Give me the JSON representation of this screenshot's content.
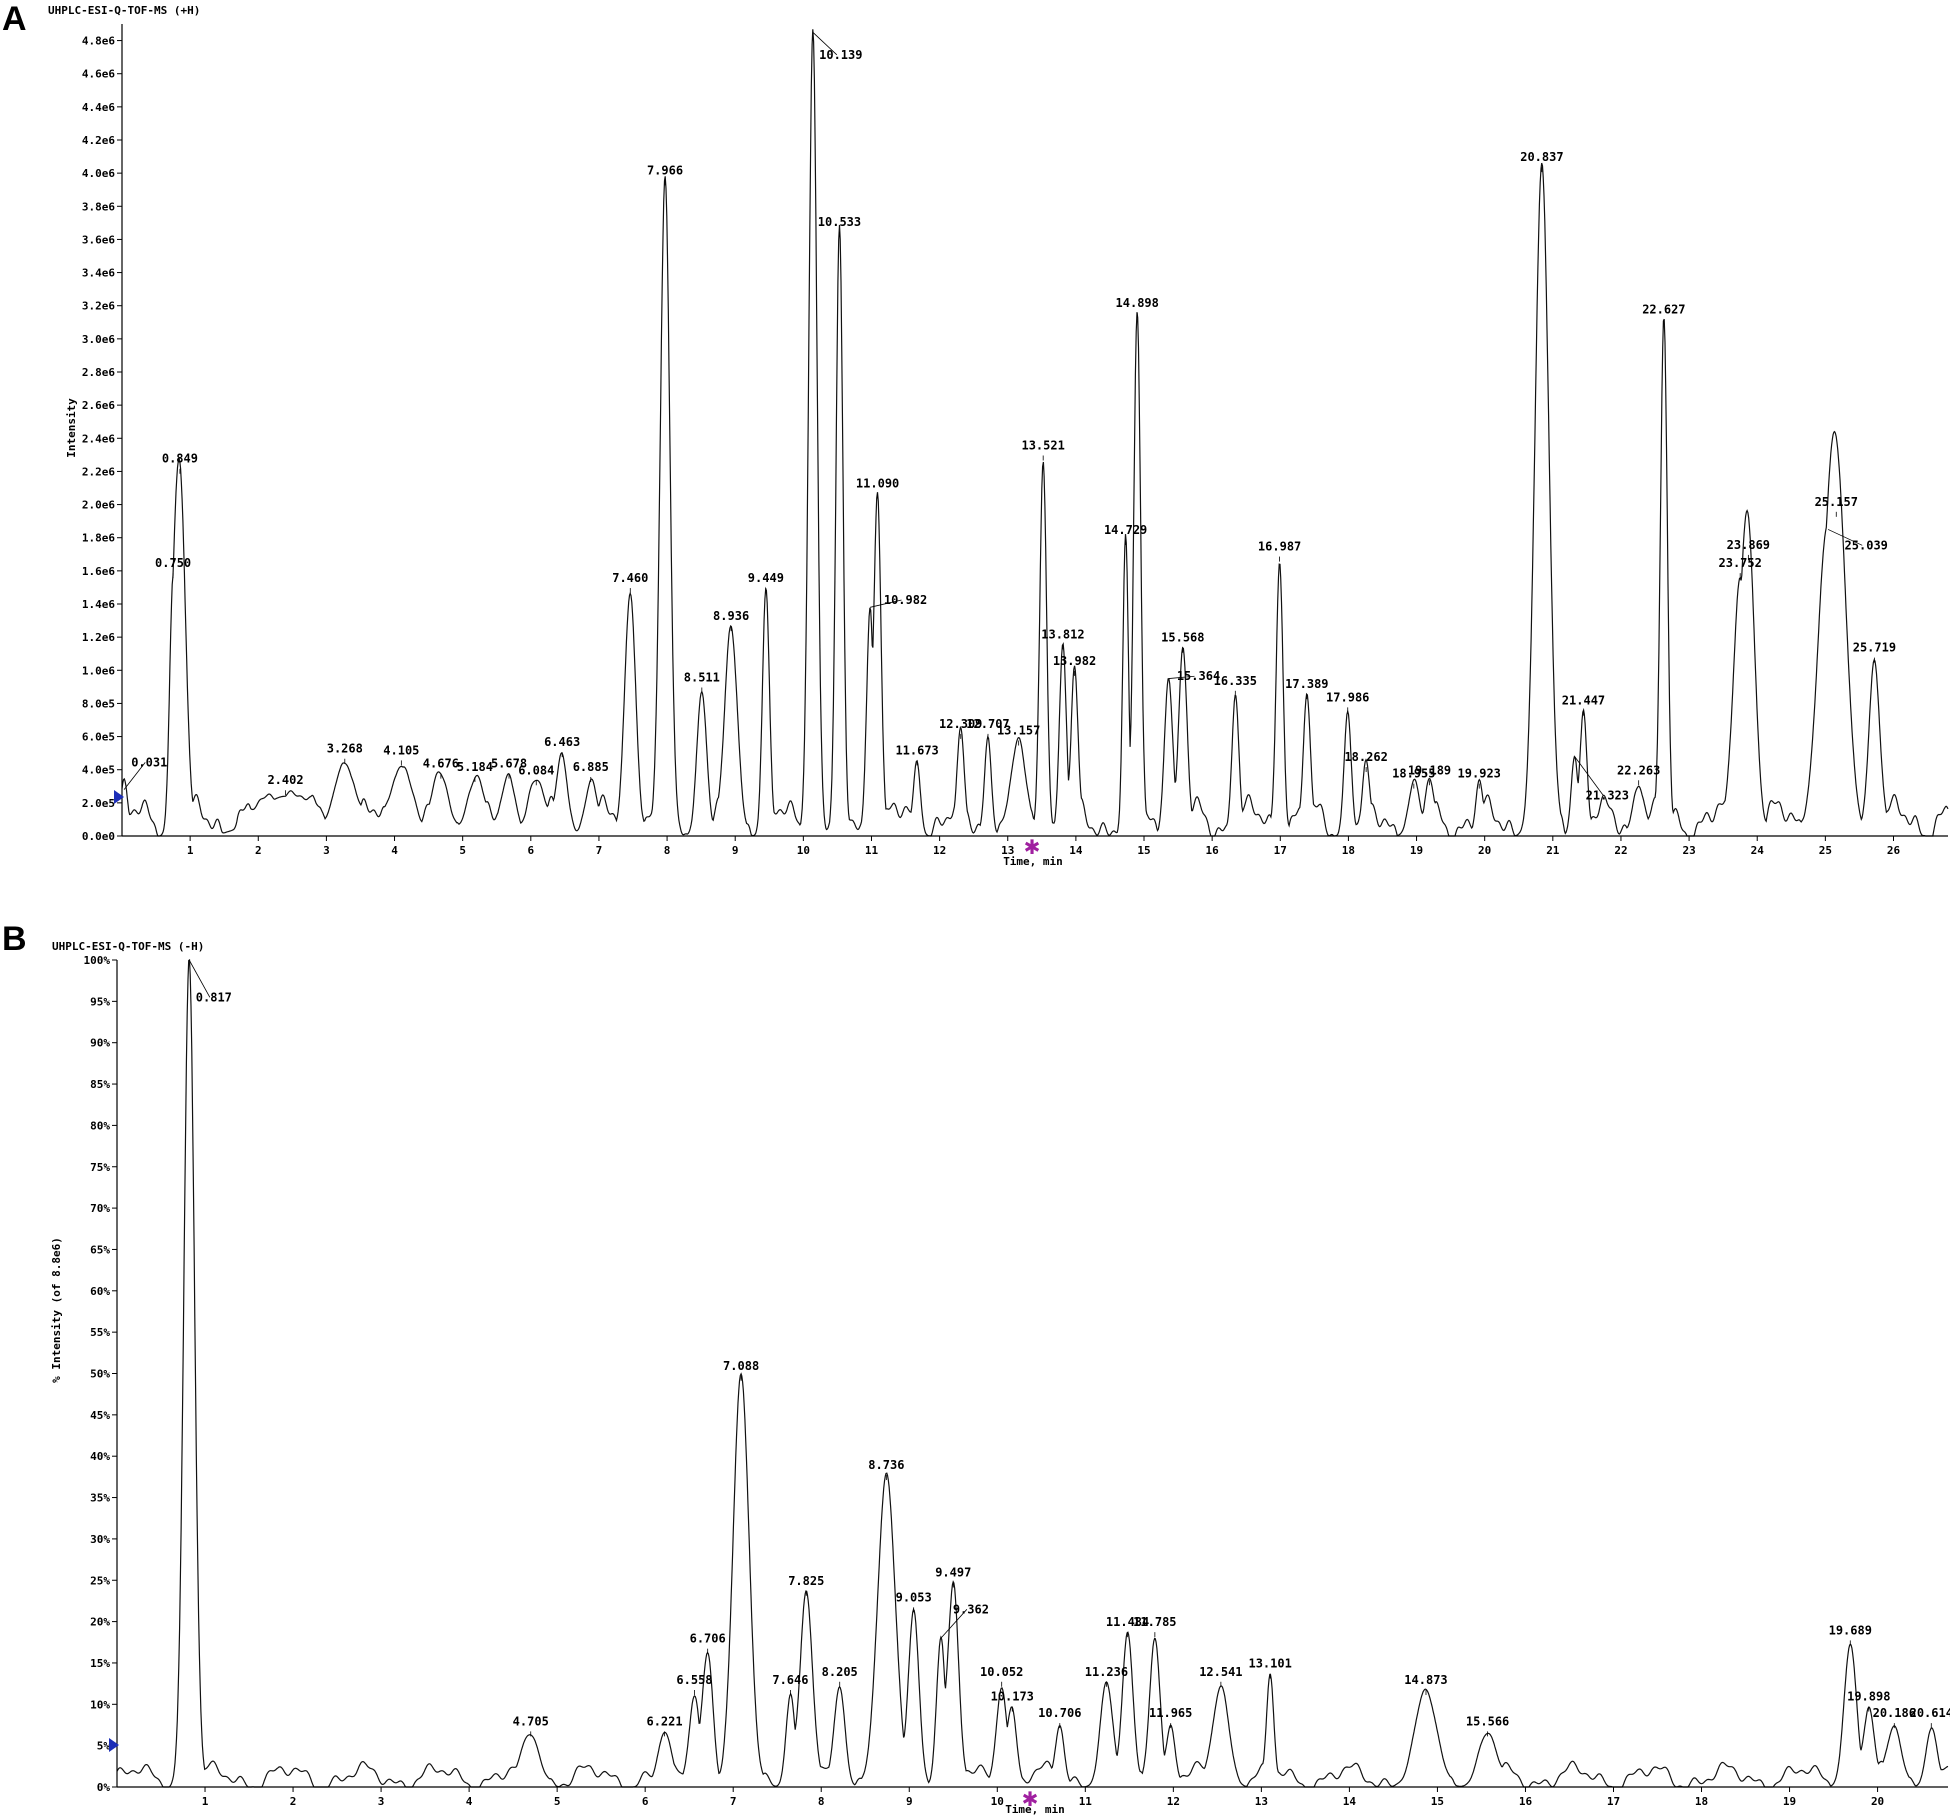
{
  "chart_data": [
    {
      "panel": "A",
      "type": "line",
      "title": "UHPLC-ESI-Q-TOF-MS (+H)",
      "xlabel": "Time, min",
      "ylabel": "Intensity",
      "xlim": [
        0,
        26.8
      ],
      "ylim": [
        0,
        4900000.0
      ],
      "xticks": [
        1,
        2,
        3,
        4,
        5,
        6,
        7,
        8,
        9,
        10,
        11,
        12,
        13,
        14,
        15,
        16,
        17,
        18,
        19,
        20,
        21,
        22,
        23,
        24,
        25,
        26
      ],
      "yticks": [
        {
          "v": 0,
          "label": "0.0e0"
        },
        {
          "v": 200000,
          "label": "2.0e5"
        },
        {
          "v": 400000,
          "label": "4.0e5"
        },
        {
          "v": 600000,
          "label": "6.0e5"
        },
        {
          "v": 800000,
          "label": "8.0e5"
        },
        {
          "v": 1000000,
          "label": "1.0e6"
        },
        {
          "v": 1200000,
          "label": "1.2e6"
        },
        {
          "v": 1400000,
          "label": "1.4e6"
        },
        {
          "v": 1600000,
          "label": "1.6e6"
        },
        {
          "v": 1800000,
          "label": "1.8e6"
        },
        {
          "v": 2000000,
          "label": "2.0e6"
        },
        {
          "v": 2200000,
          "label": "2.2e6"
        },
        {
          "v": 2400000,
          "label": "2.4e6"
        },
        {
          "v": 2600000,
          "label": "2.6e6"
        },
        {
          "v": 2800000,
          "label": "2.8e6"
        },
        {
          "v": 3000000,
          "label": "3.0e6"
        },
        {
          "v": 3200000,
          "label": "3.2e6"
        },
        {
          "v": 3400000,
          "label": "3.4e6"
        },
        {
          "v": 3600000,
          "label": "3.6e6"
        },
        {
          "v": 3800000,
          "label": "3.8e6"
        },
        {
          "v": 4000000,
          "label": "4.0e6"
        },
        {
          "v": 4200000,
          "label": "4.2e6"
        },
        {
          "v": 4400000,
          "label": "4.4e6"
        },
        {
          "v": 4600000,
          "label": "4.6e6"
        },
        {
          "v": 4800000,
          "label": "4.8e6"
        }
      ],
      "baseline": 160000,
      "peaks": [
        {
          "label": "0.031",
          "x": 0.03,
          "y": 280000,
          "w": 0.05,
          "lx": 0.4,
          "ly": 420000
        },
        {
          "label": "0.750",
          "x": 0.75,
          "y": 1550000,
          "w": 0.05
        },
        {
          "label": "0.849",
          "x": 0.85,
          "y": 2180000,
          "w": 0.08
        },
        {
          "label": "2.402",
          "x": 2.4,
          "y": 240000,
          "w": 0.4
        },
        {
          "label": "3.268",
          "x": 3.27,
          "y": 430000,
          "w": 0.15
        },
        {
          "label": "4.105",
          "x": 4.1,
          "y": 420000,
          "w": 0.15
        },
        {
          "label": "4.676",
          "x": 4.68,
          "y": 340000,
          "w": 0.12
        },
        {
          "label": "5.184",
          "x": 5.18,
          "y": 320000,
          "w": 0.12
        },
        {
          "label": "5.678",
          "x": 5.68,
          "y": 340000,
          "w": 0.1
        },
        {
          "label": "6.084",
          "x": 6.08,
          "y": 300000,
          "w": 0.12
        },
        {
          "label": "6.463",
          "x": 6.46,
          "y": 470000,
          "w": 0.08
        },
        {
          "label": "6.885",
          "x": 6.88,
          "y": 320000,
          "w": 0.08
        },
        {
          "label": "7.460",
          "x": 7.46,
          "y": 1460000,
          "w": 0.08
        },
        {
          "label": "7.966",
          "x": 7.97,
          "y": 3920000,
          "w": 0.07
        },
        {
          "label": "8.511",
          "x": 8.51,
          "y": 860000,
          "w": 0.07
        },
        {
          "label": "8.936",
          "x": 8.94,
          "y": 1230000,
          "w": 0.09
        },
        {
          "label": "9.449",
          "x": 9.45,
          "y": 1460000,
          "w": 0.05
        },
        {
          "label": "10.139",
          "x": 10.14,
          "y": 4850000,
          "w": 0.06,
          "lx": 10.55,
          "ly": 4690000
        },
        {
          "label": "10.533",
          "x": 10.53,
          "y": 3610000,
          "w": 0.05
        },
        {
          "label": "10.982",
          "x": 10.98,
          "y": 1380000,
          "w": 0.05,
          "lx": 11.5,
          "ly": 1400000
        },
        {
          "label": "11.090",
          "x": 11.09,
          "y": 2030000,
          "w": 0.05
        },
        {
          "label": "11.673",
          "x": 11.67,
          "y": 420000,
          "w": 0.05
        },
        {
          "label": "12.309",
          "x": 12.31,
          "y": 580000,
          "w": 0.05
        },
        {
          "label": "12.707",
          "x": 12.71,
          "y": 580000,
          "w": 0.05
        },
        {
          "label": "13.157",
          "x": 13.16,
          "y": 540000,
          "w": 0.1
        },
        {
          "label": "13.521",
          "x": 13.52,
          "y": 2260000,
          "w": 0.05
        },
        {
          "label": "13.812",
          "x": 13.81,
          "y": 1120000,
          "w": 0.05
        },
        {
          "label": "13.982",
          "x": 13.98,
          "y": 960000,
          "w": 0.05
        },
        {
          "label": "14.729",
          "x": 14.73,
          "y": 1750000,
          "w": 0.04
        },
        {
          "label": "14.898",
          "x": 14.9,
          "y": 3120000,
          "w": 0.05
        },
        {
          "label": "15.364",
          "x": 15.36,
          "y": 950000,
          "w": 0.06,
          "lx": 15.8,
          "ly": 940000
        },
        {
          "label": "15.568",
          "x": 15.57,
          "y": 1100000,
          "w": 0.06
        },
        {
          "label": "16.335",
          "x": 16.34,
          "y": 840000,
          "w": 0.05
        },
        {
          "label": "16.987",
          "x": 16.99,
          "y": 1650000,
          "w": 0.05
        },
        {
          "label": "17.389",
          "x": 17.39,
          "y": 820000,
          "w": 0.05
        },
        {
          "label": "17.986",
          "x": 17.99,
          "y": 740000,
          "w": 0.05
        },
        {
          "label": "18.262",
          "x": 18.26,
          "y": 380000,
          "w": 0.05
        },
        {
          "label": "18.955",
          "x": 18.96,
          "y": 280000,
          "w": 0.08
        },
        {
          "label": "19.189",
          "x": 19.19,
          "y": 300000,
          "w": 0.06
        },
        {
          "label": "19.923",
          "x": 19.92,
          "y": 280000,
          "w": 0.05
        },
        {
          "label": "20.837",
          "x": 20.84,
          "y": 4000000,
          "w": 0.1
        },
        {
          "label": "21.323",
          "x": 21.32,
          "y": 480000,
          "w": 0.05,
          "lx": 21.8,
          "ly": 220000
        },
        {
          "label": "21.447",
          "x": 21.45,
          "y": 720000,
          "w": 0.05
        },
        {
          "label": "22.263",
          "x": 22.26,
          "y": 300000,
          "w": 0.08
        },
        {
          "label": "22.627",
          "x": 22.63,
          "y": 3080000,
          "w": 0.05
        },
        {
          "label": "23.752",
          "x": 23.75,
          "y": 1550000,
          "w": 0.1
        },
        {
          "label": "23.869",
          "x": 23.87,
          "y": 1660000,
          "w": 0.1
        },
        {
          "label": "25.039",
          "x": 25.04,
          "y": 1850000,
          "w": 0.15,
          "lx": 25.6,
          "ly": 1730000
        },
        {
          "label": "25.157",
          "x": 25.16,
          "y": 1920000,
          "w": 0.15
        },
        {
          "label": "25.719",
          "x": 25.72,
          "y": 1040000,
          "w": 0.08
        }
      ]
    },
    {
      "panel": "B",
      "type": "line",
      "title": "UHPLC-ESI-Q-TOF-MS (-H)",
      "xlabel": "Time, min",
      "ylabel": "% Intensity (of 8.8e6)",
      "xlim": [
        0,
        20.8
      ],
      "ylim": [
        0,
        100
      ],
      "xticks": [
        1,
        2,
        3,
        4,
        5,
        6,
        7,
        8,
        9,
        10,
        11,
        12,
        13,
        14,
        15,
        16,
        17,
        18,
        19,
        20
      ],
      "yticks": [
        {
          "v": 0,
          "label": "0%"
        },
        {
          "v": 5,
          "label": "5%"
        },
        {
          "v": 10,
          "label": "10%"
        },
        {
          "v": 15,
          "label": "15%"
        },
        {
          "v": 20,
          "label": "20%"
        },
        {
          "v": 25,
          "label": "25%"
        },
        {
          "v": 30,
          "label": "30%"
        },
        {
          "v": 35,
          "label": "35%"
        },
        {
          "v": 40,
          "label": "40%"
        },
        {
          "v": 45,
          "label": "45%"
        },
        {
          "v": 50,
          "label": "50%"
        },
        {
          "v": 55,
          "label": "55%"
        },
        {
          "v": 60,
          "label": "60%"
        },
        {
          "v": 65,
          "label": "65%"
        },
        {
          "v": 70,
          "label": "70%"
        },
        {
          "v": 75,
          "label": "75%"
        },
        {
          "v": 80,
          "label": "80%"
        },
        {
          "v": 85,
          "label": "85%"
        },
        {
          "v": 90,
          "label": "90%"
        },
        {
          "v": 95,
          "label": "95%"
        },
        {
          "v": 100,
          "label": "100%"
        }
      ],
      "baseline": 2,
      "peaks": [
        {
          "label": "0.817",
          "x": 0.82,
          "y": 100,
          "w": 0.06,
          "lx": 1.1,
          "ly": 95
        },
        {
          "label": "4.705",
          "x": 4.7,
          "y": 6,
          "w": 0.1
        },
        {
          "label": "6.221",
          "x": 6.22,
          "y": 6,
          "w": 0.07
        },
        {
          "label": "6.558",
          "x": 6.56,
          "y": 11,
          "w": 0.06
        },
        {
          "label": "6.706",
          "x": 6.71,
          "y": 16,
          "w": 0.06
        },
        {
          "label": "7.088",
          "x": 7.09,
          "y": 49,
          "w": 0.09
        },
        {
          "label": "7.646",
          "x": 7.65,
          "y": 11,
          "w": 0.05
        },
        {
          "label": "7.825",
          "x": 7.83,
          "y": 23,
          "w": 0.07
        },
        {
          "label": "8.205",
          "x": 8.21,
          "y": 12,
          "w": 0.06
        },
        {
          "label": "8.736",
          "x": 8.74,
          "y": 37,
          "w": 0.1
        },
        {
          "label": "9.053",
          "x": 9.05,
          "y": 21,
          "w": 0.06
        },
        {
          "label": "9.362",
          "x": 9.36,
          "y": 18,
          "w": 0.05,
          "lx": 9.7,
          "ly": 21
        },
        {
          "label": "9.497",
          "x": 9.5,
          "y": 24,
          "w": 0.06
        },
        {
          "label": "10.052",
          "x": 10.05,
          "y": 12,
          "w": 0.06
        },
        {
          "label": "10.173",
          "x": 10.17,
          "y": 9,
          "w": 0.05
        },
        {
          "label": "10.706",
          "x": 10.71,
          "y": 7,
          "w": 0.05
        },
        {
          "label": "11.236",
          "x": 11.24,
          "y": 12,
          "w": 0.07
        },
        {
          "label": "11.484",
          "x": 11.48,
          "y": 18,
          "w": 0.06
        },
        {
          "label": "11.785",
          "x": 11.79,
          "y": 18,
          "w": 0.06
        },
        {
          "label": "11.965",
          "x": 11.97,
          "y": 7,
          "w": 0.05
        },
        {
          "label": "12.541",
          "x": 12.54,
          "y": 12,
          "w": 0.09
        },
        {
          "label": "13.101",
          "x": 13.1,
          "y": 13,
          "w": 0.04
        },
        {
          "label": "14.873",
          "x": 14.87,
          "y": 11,
          "w": 0.12
        },
        {
          "label": "15.566",
          "x": 15.57,
          "y": 6,
          "w": 0.1
        },
        {
          "label": "19.689",
          "x": 19.69,
          "y": 17,
          "w": 0.07
        },
        {
          "label": "19.898",
          "x": 19.9,
          "y": 9,
          "w": 0.06
        },
        {
          "label": "20.186",
          "x": 20.19,
          "y": 7,
          "w": 0.08
        },
        {
          "label": "20.614",
          "x": 20.61,
          "y": 7,
          "w": 0.06
        }
      ]
    }
  ]
}
